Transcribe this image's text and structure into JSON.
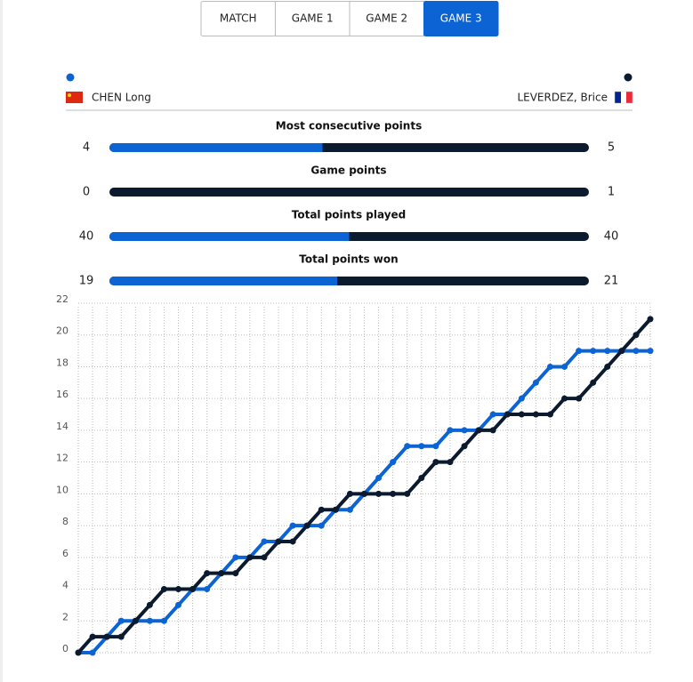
{
  "tabs": [
    {
      "label": "MATCH",
      "active": false
    },
    {
      "label": "GAME 1",
      "active": false
    },
    {
      "label": "GAME 2",
      "active": false
    },
    {
      "label": "GAME 3",
      "active": true
    }
  ],
  "players": [
    {
      "name": "CHEN Long"
    },
    {
      "name": "LEVERDEZ, Brice"
    }
  ],
  "stats": [
    {
      "label": "Most consecutive points",
      "values": [
        4,
        5
      ]
    },
    {
      "label": "Game points",
      "values": [
        0,
        1
      ]
    },
    {
      "label": "Total points played",
      "values": [
        40,
        40
      ]
    },
    {
      "label": "Total points won",
      "values": [
        19,
        21
      ]
    }
  ],
  "chart_data": {
    "type": "line",
    "x": [
      0,
      1,
      2,
      3,
      4,
      5,
      6,
      7,
      8,
      9,
      10,
      11,
      12,
      13,
      14,
      15,
      16,
      17,
      18,
      19,
      20,
      21,
      22,
      23,
      24,
      25,
      26,
      27,
      28,
      29,
      30,
      31,
      32,
      33,
      34,
      35,
      36,
      37,
      38,
      39,
      40
    ],
    "xlim": [
      0,
      40
    ],
    "ylim": [
      0,
      22
    ],
    "yticks": [
      0,
      2,
      4,
      6,
      8,
      10,
      12,
      14,
      16,
      18,
      20,
      22
    ],
    "grid": true,
    "series": [
      {
        "color": "#0c64d4",
        "values": [
          0,
          0,
          1,
          2,
          2,
          2,
          2,
          3,
          4,
          4,
          5,
          6,
          6,
          7,
          7,
          8,
          8,
          8,
          9,
          9,
          10,
          11,
          12,
          13,
          13,
          13,
          14,
          14,
          14,
          15,
          15,
          16,
          17,
          18,
          18,
          19,
          19,
          19,
          19,
          19,
          19
        ]
      },
      {
        "color": "#0b1a2e",
        "values": [
          0,
          1,
          1,
          1,
          2,
          3,
          4,
          4,
          4,
          5,
          5,
          5,
          6,
          6,
          7,
          7,
          8,
          9,
          9,
          10,
          10,
          10,
          10,
          10,
          11,
          12,
          12,
          13,
          14,
          14,
          15,
          15,
          15,
          15,
          16,
          16,
          17,
          18,
          19,
          20,
          21
        ]
      }
    ]
  }
}
